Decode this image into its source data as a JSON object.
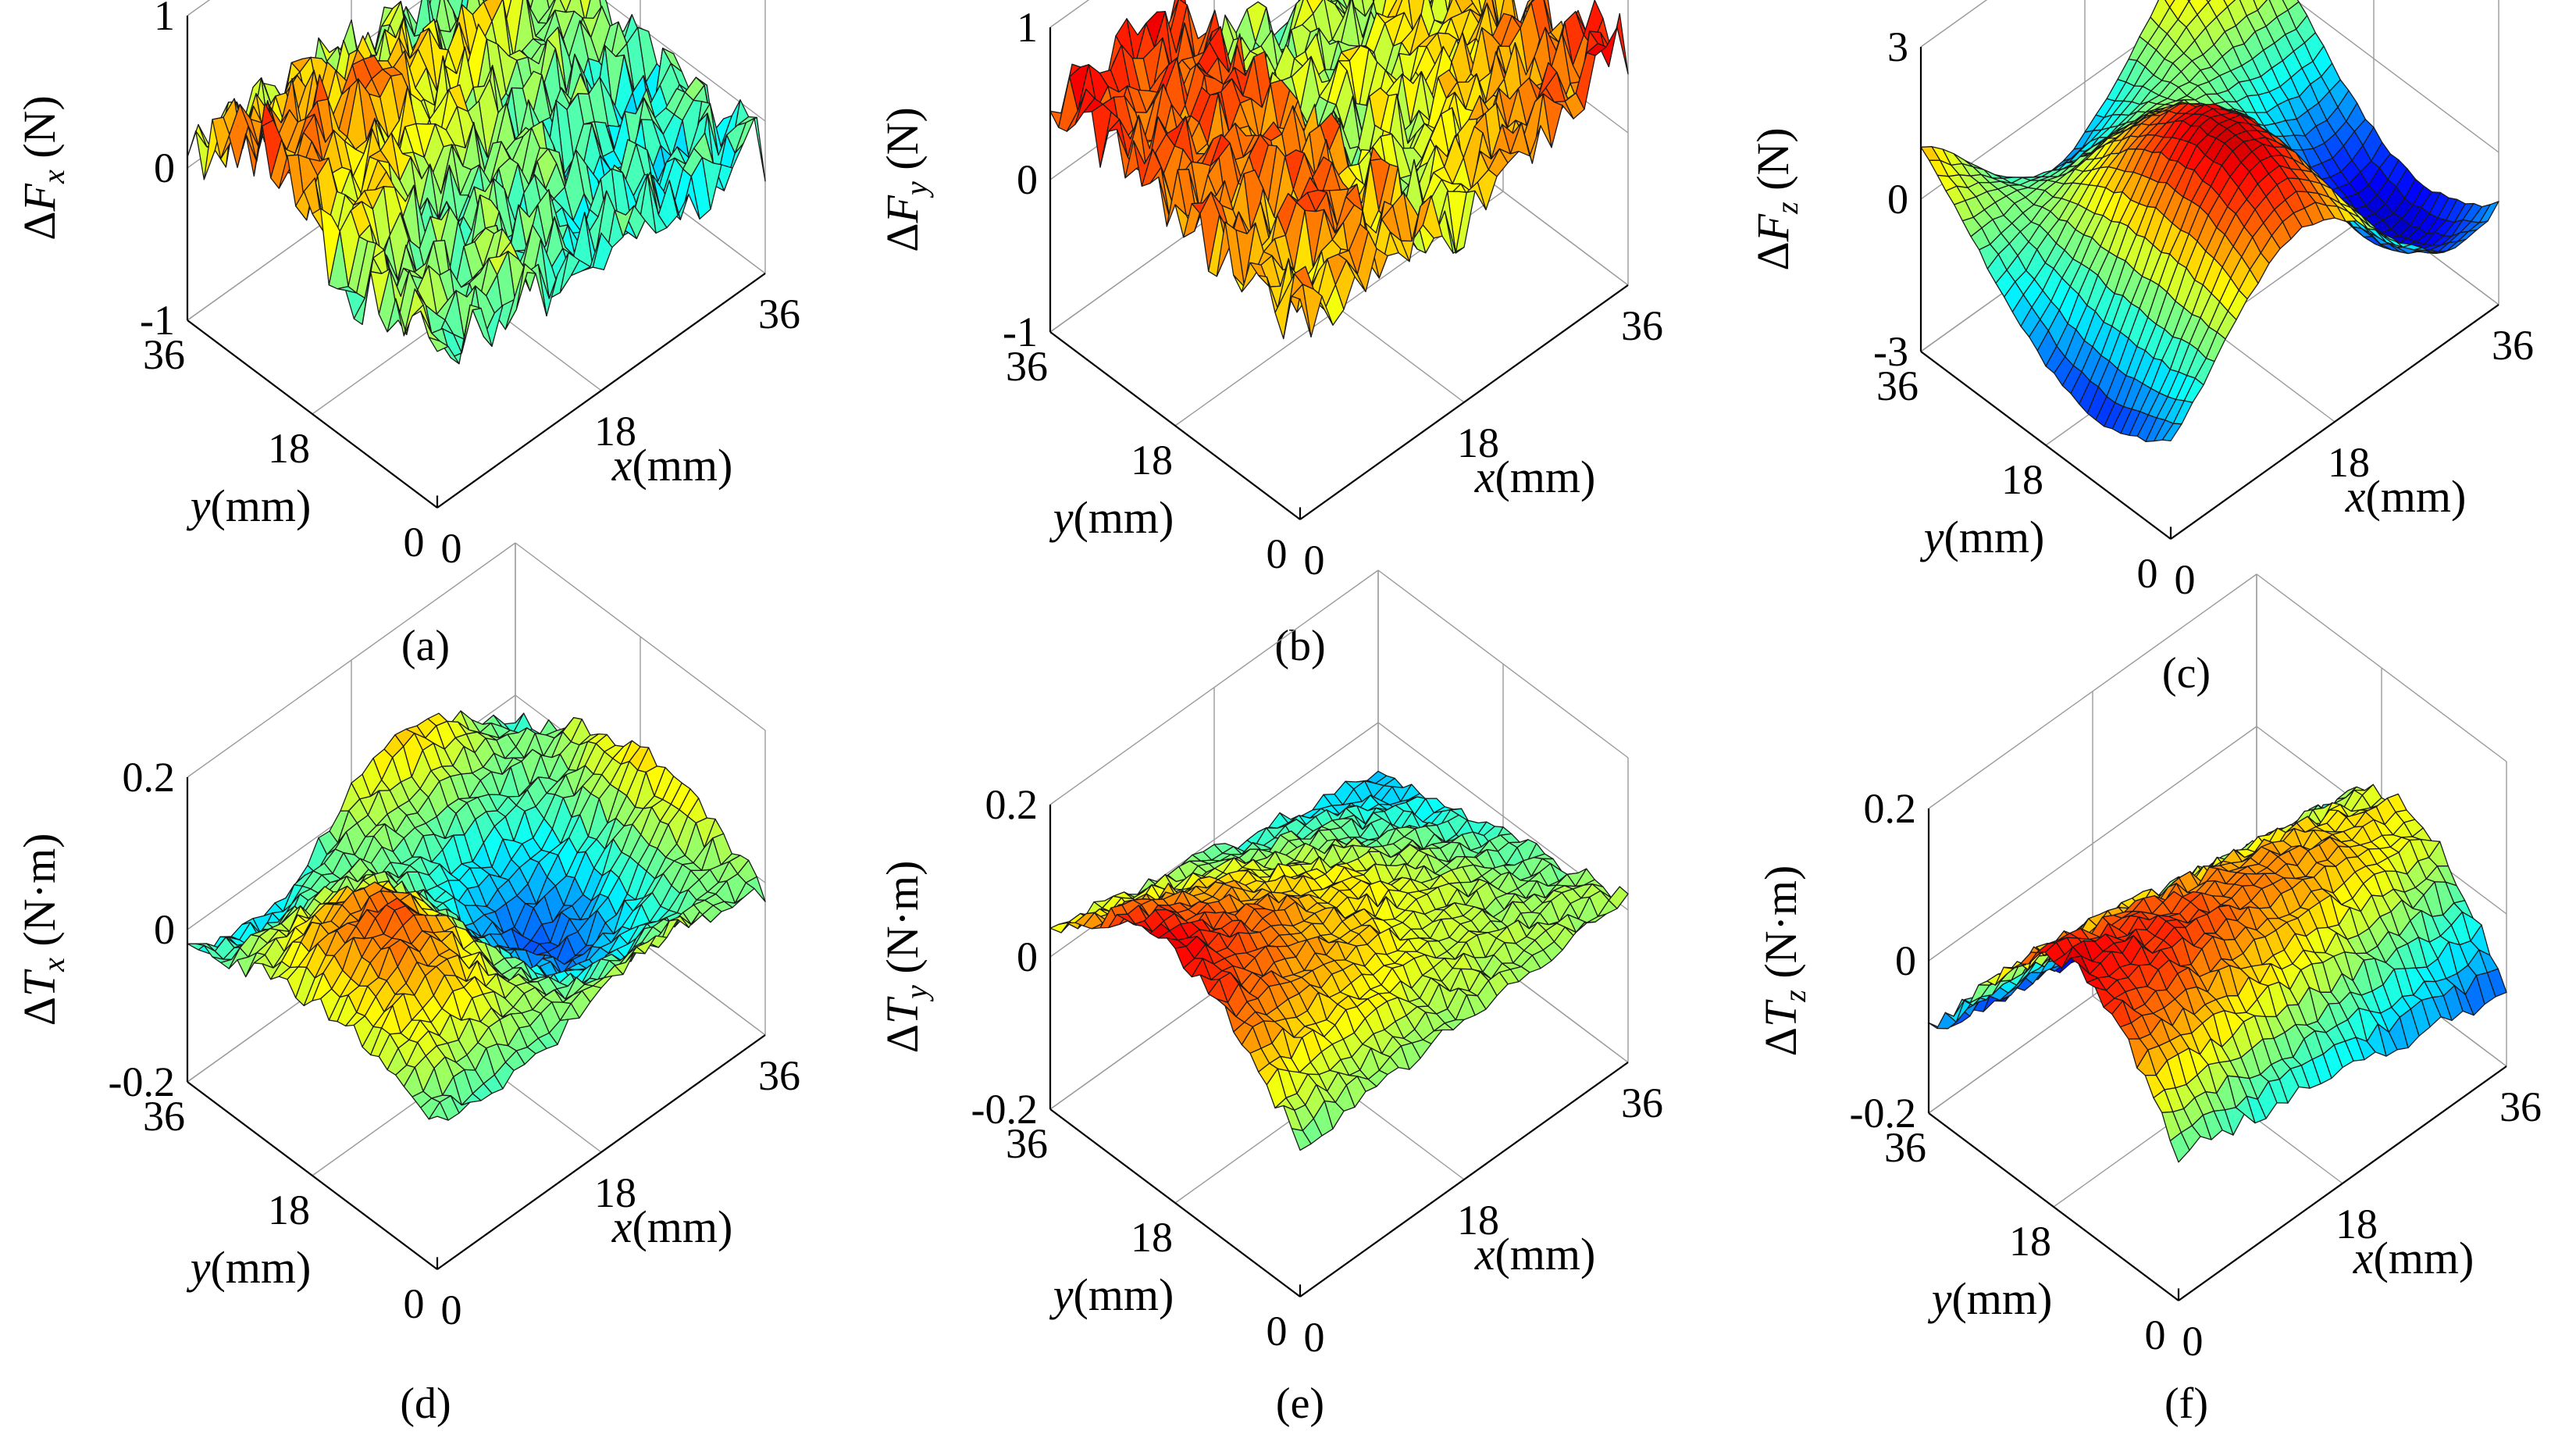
{
  "chart_data": [
    {
      "type": "surface",
      "panel_label": "(a)",
      "zlabel": {
        "prefix": "ΔF",
        "sub": "x",
        "unit": " (N)"
      },
      "xlabel": {
        "var": "x",
        "unit": "(mm)"
      },
      "ylabel": {
        "var": "y",
        "unit": "(mm)"
      },
      "x_ticks": [
        "0",
        "18",
        "36"
      ],
      "y_ticks": [
        "0",
        "18",
        "36"
      ],
      "z_ticks": [
        "-1",
        "0",
        "1"
      ],
      "xlim": [
        0,
        36
      ],
      "ylim": [
        0,
        36
      ],
      "zlim": [
        -1,
        1
      ],
      "grid": true,
      "colormap": "jet"
    },
    {
      "type": "surface",
      "panel_label": "(b)",
      "zlabel": {
        "prefix": "ΔF",
        "sub": "y",
        "unit": " (N)"
      },
      "xlabel": {
        "var": "x",
        "unit": "(mm)"
      },
      "ylabel": {
        "var": "y",
        "unit": "(mm)"
      },
      "x_ticks": [
        "0",
        "18",
        "36"
      ],
      "y_ticks": [
        "0",
        "18",
        "36"
      ],
      "z_ticks": [
        "-1",
        "0",
        "1"
      ],
      "xlim": [
        0,
        36
      ],
      "ylim": [
        0,
        36
      ],
      "zlim": [
        -1,
        1
      ],
      "grid": true,
      "colormap": "jet"
    },
    {
      "type": "surface",
      "panel_label": "(c)",
      "zlabel": {
        "prefix": "ΔF",
        "sub": "z",
        "unit": " (N)"
      },
      "xlabel": {
        "var": "x",
        "unit": "(mm)"
      },
      "ylabel": {
        "var": "y",
        "unit": "(mm)"
      },
      "x_ticks": [
        "0",
        "18",
        "36"
      ],
      "y_ticks": [
        "0",
        "18",
        "36"
      ],
      "z_ticks": [
        "-3",
        "0",
        "3"
      ],
      "xlim": [
        0,
        36
      ],
      "ylim": [
        0,
        36
      ],
      "zlim": [
        -3,
        3
      ],
      "grid": true,
      "colormap": "jet"
    },
    {
      "type": "surface",
      "panel_label": "(d)",
      "zlabel": {
        "prefix": "ΔT",
        "sub": "x",
        "unit": " (N·m)"
      },
      "xlabel": {
        "var": "x",
        "unit": "(mm)"
      },
      "ylabel": {
        "var": "y",
        "unit": "(mm)"
      },
      "x_ticks": [
        "0",
        "18",
        "36"
      ],
      "y_ticks": [
        "0",
        "18",
        "36"
      ],
      "z_ticks": [
        "-0.2",
        "0",
        "0.2"
      ],
      "xlim": [
        0,
        36
      ],
      "ylim": [
        0,
        36
      ],
      "zlim": [
        -0.2,
        0.2
      ],
      "grid": true,
      "colormap": "jet"
    },
    {
      "type": "surface",
      "panel_label": "(e)",
      "zlabel": {
        "prefix": "ΔT",
        "sub": "y",
        "unit": " (N·m)"
      },
      "xlabel": {
        "var": "x",
        "unit": "(mm)"
      },
      "ylabel": {
        "var": "y",
        "unit": "(mm)"
      },
      "x_ticks": [
        "0",
        "18",
        "36"
      ],
      "y_ticks": [
        "0",
        "18",
        "36"
      ],
      "z_ticks": [
        "-0.2",
        "0",
        "0.2"
      ],
      "xlim": [
        0,
        36
      ],
      "ylim": [
        0,
        36
      ],
      "zlim": [
        -0.2,
        0.2
      ],
      "grid": true,
      "colormap": "jet"
    },
    {
      "type": "surface",
      "panel_label": "(f)",
      "zlabel": {
        "prefix": "ΔT",
        "sub": "z",
        "unit": " (N·m)"
      },
      "xlabel": {
        "var": "x",
        "unit": "(mm)"
      },
      "ylabel": {
        "var": "y",
        "unit": "(mm)"
      },
      "x_ticks": [
        "0",
        "18",
        "36"
      ],
      "y_ticks": [
        "0",
        "18",
        "36"
      ],
      "z_ticks": [
        "-0.2",
        "0",
        "0.2"
      ],
      "xlim": [
        0,
        36
      ],
      "ylim": [
        0,
        36
      ],
      "zlim": [
        -0.2,
        0.2
      ],
      "grid": true,
      "colormap": "jet"
    }
  ]
}
